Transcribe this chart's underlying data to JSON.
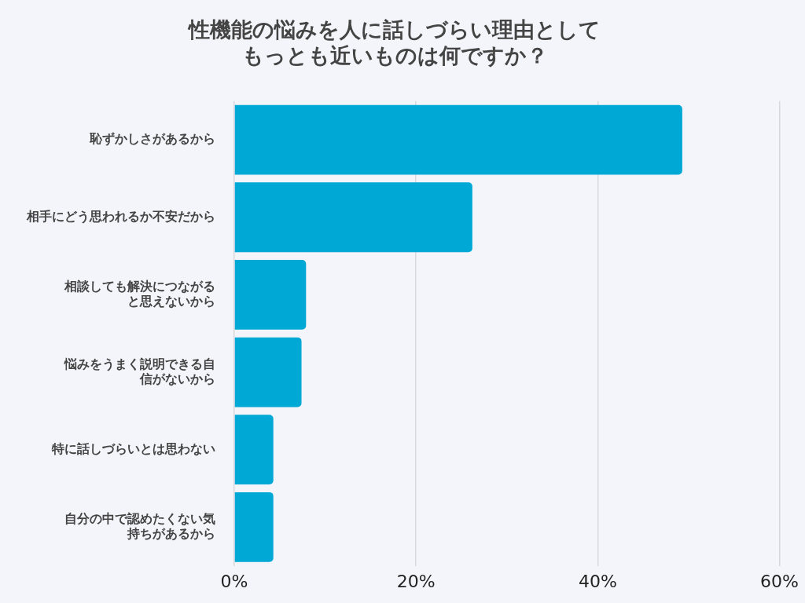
{
  "chart_data": {
    "type": "bar",
    "orientation": "horizontal",
    "title": "性機能の悩みを人に話しづらい理由としてもっとも近いものは何ですか？",
    "categories": [
      "恥ずかしさがあるから",
      "相手にどう思われるか不安だから",
      "相談しても解決につながると思えないから",
      "悩みをうまく説明できる自信がないから",
      "特に話しづらいとは思わない",
      "自分の中で認めたくない気持ちがあるから"
    ],
    "values": [
      49.3,
      26.2,
      7.9,
      7.4,
      4.3,
      4.3
    ],
    "color": "#00a8d6",
    "xlim": [
      0,
      60
    ],
    "xticks": [
      {
        "value": 0,
        "label": "0%"
      },
      {
        "value": 20,
        "label": "20%"
      },
      {
        "value": 40,
        "label": "40%"
      },
      {
        "value": 60,
        "label": "60%"
      }
    ],
    "grid": "x",
    "legend": false
  }
}
